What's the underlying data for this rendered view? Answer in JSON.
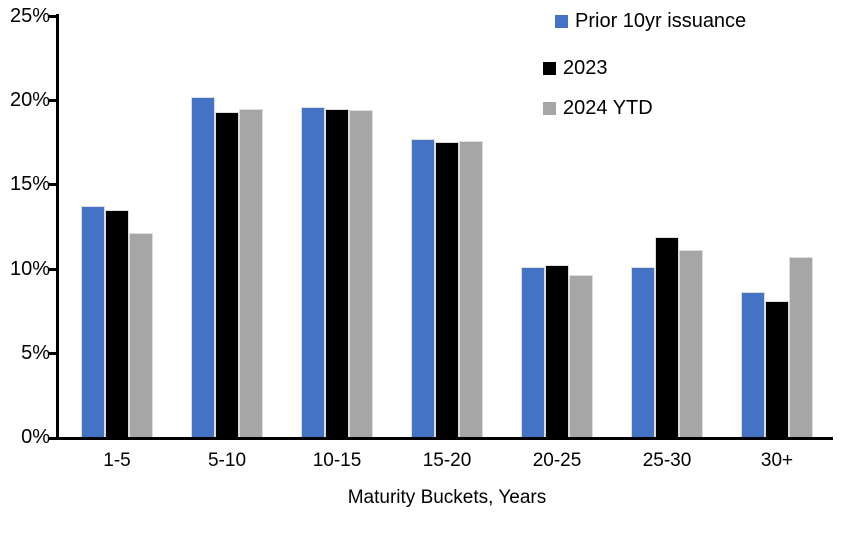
{
  "chart_data": {
    "type": "bar",
    "title": "",
    "xlabel": "Maturity Buckets, Years",
    "ylabel": "",
    "ylim": [
      0,
      25
    ],
    "ytick_values": [
      0,
      5,
      10,
      15,
      20,
      25
    ],
    "ytick_labels": [
      "0%",
      "5%",
      "10%",
      "15%",
      "20%",
      "25%"
    ],
    "categories": [
      "1-5",
      "5-10",
      "10-15",
      "15-20",
      "20-25",
      "25-30",
      "30+"
    ],
    "series": [
      {
        "name": "Prior 10yr issuance",
        "color": "#4472C4",
        "values": [
          13.7,
          20.2,
          19.6,
          17.7,
          10.1,
          10.1,
          8.6
        ]
      },
      {
        "name": "2023",
        "color": "#000000",
        "values": [
          13.5,
          19.3,
          19.5,
          17.5,
          10.2,
          11.9,
          8.1
        ]
      },
      {
        "name": "2024 YTD",
        "color": "#A6A6A6",
        "values": [
          12.1,
          19.5,
          19.4,
          17.6,
          9.6,
          11.1,
          10.7
        ]
      }
    ],
    "legend_position": "top-right",
    "grid": false,
    "axis_color": "#000000",
    "background_color": "#FFFFFF"
  }
}
